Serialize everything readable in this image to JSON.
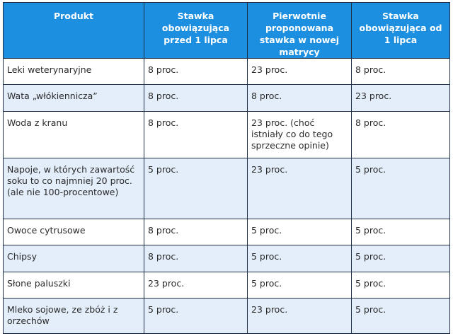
{
  "table": {
    "headers": [
      "Produkt",
      "Stawka obowiązująca przed 1 lipca",
      "Pierwotnie proponowana stawka w nowej matrycy",
      "Stawka obowiązująca od 1 lipca"
    ],
    "rows": [
      [
        "Leki weterynaryjne",
        "8 proc.",
        "23 proc.",
        "8 proc."
      ],
      [
        "Wata „włókiennicza”",
        "8 proc.",
        "8 proc.",
        "23 proc."
      ],
      [
        "Woda z kranu",
        "8 proc.",
        "23 proc. (choć istniały co do tego sprzeczne opinie)",
        "8 proc."
      ],
      [
        "Napoje, w których zawartość soku to co najmniej 20 proc. (ale nie 100-procentowe)",
        "5 proc.",
        "23 proc.",
        "5 proc."
      ],
      [
        "Owoce cytrusowe",
        "8 proc.",
        "5 proc.",
        "5 proc."
      ],
      [
        "Chipsy",
        "8 proc.",
        "5 proc.",
        "5 proc."
      ],
      [
        "Słone paluszki",
        "23 proc.",
        "5 proc.",
        "5 proc."
      ],
      [
        "Mleko sojowe, ze zbóż i z orzechów",
        "5 proc.",
        "23 proc.",
        "5 proc."
      ]
    ]
  }
}
